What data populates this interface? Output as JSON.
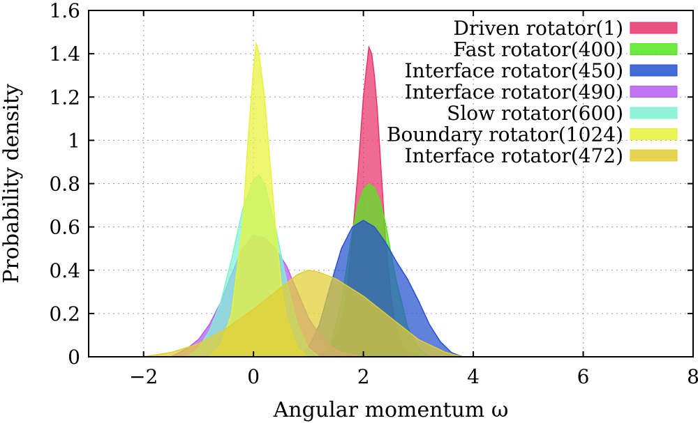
{
  "chart_data": {
    "type": "area",
    "title": "",
    "xlabel": "Angular momentum ω",
    "ylabel": "Probability density",
    "xlim": [
      -3,
      8
    ],
    "ylim": [
      0,
      1.6
    ],
    "xticks": [
      "−2",
      "0",
      "2",
      "4",
      "6",
      "8"
    ],
    "xtick_values": [
      -2,
      0,
      2,
      4,
      6,
      8
    ],
    "yticks": [
      "0",
      "0.2",
      "0.4",
      "0.6",
      "0.8",
      "1",
      "1.2",
      "1.4",
      "1.6"
    ],
    "ytick_values": [
      0,
      0.2,
      0.4,
      0.6,
      0.8,
      1.0,
      1.2,
      1.4,
      1.6
    ],
    "grid": true,
    "legend_position": "top-right",
    "series": [
      {
        "name": "Driven rotator(1)",
        "color": "#e8336b",
        "x": [
          1.0,
          1.2,
          1.4,
          1.6,
          1.7,
          1.8,
          1.9,
          2.0,
          2.05,
          2.1,
          2.15,
          2.2,
          2.25,
          2.3,
          2.4,
          2.5,
          2.6,
          2.7,
          2.8,
          2.9,
          3.0,
          3.2
        ],
        "y": [
          0.0,
          0.01,
          0.04,
          0.15,
          0.3,
          0.55,
          0.85,
          1.2,
          1.32,
          1.43,
          1.4,
          1.3,
          1.15,
          0.95,
          0.55,
          0.28,
          0.12,
          0.05,
          0.02,
          0.01,
          0.0,
          0.0
        ]
      },
      {
        "name": "Fast rotator(400)",
        "color": "#56e620",
        "x": [
          1.2,
          1.4,
          1.6,
          1.7,
          1.8,
          1.9,
          2.0,
          2.1,
          2.2,
          2.3,
          2.4,
          2.5,
          2.6,
          2.7,
          2.8,
          3.0,
          3.2
        ],
        "y": [
          0.0,
          0.05,
          0.25,
          0.42,
          0.58,
          0.7,
          0.77,
          0.8,
          0.78,
          0.72,
          0.62,
          0.48,
          0.35,
          0.25,
          0.14,
          0.04,
          0.0
        ]
      },
      {
        "name": "Interface rotator(450)",
        "color": "#2352d0",
        "x": [
          0.8,
          1.0,
          1.2,
          1.4,
          1.6,
          1.8,
          2.0,
          2.2,
          2.4,
          2.6,
          2.8,
          3.0,
          3.2,
          3.4,
          3.6,
          3.8
        ],
        "y": [
          0.0,
          0.04,
          0.15,
          0.33,
          0.5,
          0.6,
          0.63,
          0.6,
          0.53,
          0.44,
          0.36,
          0.26,
          0.15,
          0.07,
          0.02,
          0.0
        ]
      },
      {
        "name": "Interface rotator(490)",
        "color": "#b45cf0",
        "x": [
          -1.5,
          -1.2,
          -1.0,
          -0.8,
          -0.6,
          -0.4,
          -0.2,
          0.0,
          0.2,
          0.4,
          0.6,
          0.8,
          1.0,
          1.2,
          1.4,
          1.6,
          1.8,
          2.0
        ],
        "y": [
          0.0,
          0.04,
          0.08,
          0.15,
          0.25,
          0.38,
          0.5,
          0.56,
          0.55,
          0.5,
          0.42,
          0.3,
          0.18,
          0.1,
          0.05,
          0.02,
          0.01,
          0.0
        ]
      },
      {
        "name": "Slow rotator(600)",
        "color": "#7ef2d3",
        "x": [
          -1.2,
          -1.0,
          -0.8,
          -0.6,
          -0.4,
          -0.2,
          0.0,
          0.1,
          0.2,
          0.4,
          0.6,
          0.8,
          1.0,
          1.2
        ],
        "y": [
          0.0,
          0.04,
          0.12,
          0.25,
          0.45,
          0.68,
          0.82,
          0.84,
          0.8,
          0.6,
          0.35,
          0.15,
          0.04,
          0.0
        ]
      },
      {
        "name": "Boundary rotator(1024)",
        "color": "#e7f23a",
        "x": [
          -0.8,
          -0.6,
          -0.4,
          -0.2,
          -0.1,
          0.0,
          0.05,
          0.1,
          0.2,
          0.3,
          0.4,
          0.5,
          0.6,
          0.8,
          1.0
        ],
        "y": [
          0.0,
          0.05,
          0.2,
          0.6,
          1.0,
          1.33,
          1.45,
          1.4,
          1.2,
          0.9,
          0.6,
          0.35,
          0.18,
          0.04,
          0.0
        ]
      },
      {
        "name": "Interface rotator(472)",
        "color": "#e2cd33",
        "x": [
          -2.0,
          -1.5,
          -1.0,
          -0.5,
          0.0,
          0.5,
          0.8,
          1.0,
          1.2,
          1.5,
          2.0,
          2.5,
          3.0,
          3.5,
          3.8
        ],
        "y": [
          0.0,
          0.02,
          0.06,
          0.13,
          0.22,
          0.32,
          0.38,
          0.4,
          0.39,
          0.36,
          0.28,
          0.18,
          0.08,
          0.02,
          0.0
        ]
      }
    ]
  }
}
